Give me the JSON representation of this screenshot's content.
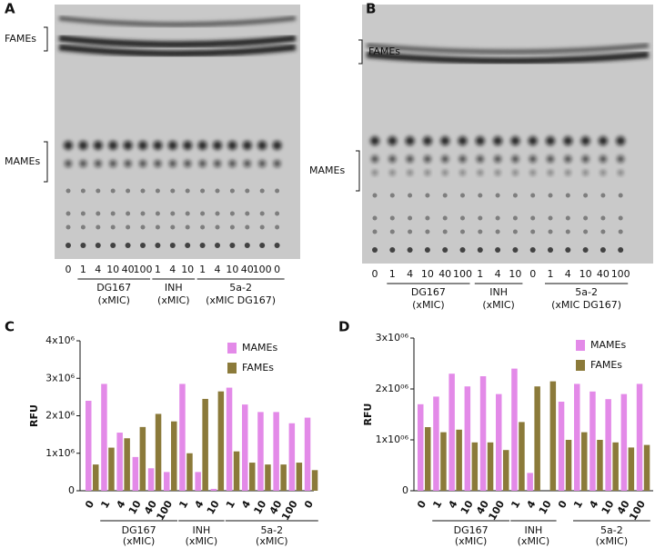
{
  "panels": [
    {
      "letter": "A",
      "band_labels": [
        "FAMEs",
        "MAMEs"
      ],
      "lanes": [
        "0",
        "1",
        "4",
        "10",
        "40",
        "100",
        "1",
        "4",
        "10",
        "1",
        "4",
        "10",
        "40",
        "100",
        "0"
      ],
      "groups": [
        {
          "name": "DG167",
          "unit": "(xMIC)"
        },
        {
          "name": "INH",
          "unit": "(xMIC)"
        },
        {
          "name": "5a-2",
          "unit": "(xMIC DG167)"
        }
      ]
    },
    {
      "letter": "B",
      "band_labels": [
        "FAMEs",
        "MAMEs"
      ],
      "lanes": [
        "0",
        "1",
        "4",
        "10",
        "40",
        "100",
        "1",
        "4",
        "10",
        "0",
        "1",
        "4",
        "10",
        "40",
        "100"
      ],
      "groups": [
        {
          "name": "DG167",
          "unit": "(xMIC)"
        },
        {
          "name": "INH",
          "unit": "(xMIC)"
        },
        {
          "name": "5a-2",
          "unit": "(xMIC DG167)"
        }
      ]
    }
  ],
  "chart_data": [
    {
      "type": "bar",
      "panel": "C",
      "y_label": "RFU",
      "categories": [
        "0",
        "1",
        "4",
        "10",
        "40",
        "100",
        "1",
        "4",
        "10",
        "1",
        "4",
        "10",
        "40",
        "100",
        "0"
      ],
      "series": [
        {
          "name": "MAMEs",
          "color": "#e38ae8",
          "values": [
            2400000,
            2850000,
            1550000,
            900000,
            600000,
            500000,
            2850000,
            500000,
            50000,
            2750000,
            2300000,
            2100000,
            2100000,
            1800000,
            1950000
          ]
        },
        {
          "name": "FAMEs",
          "color": "#8b7a3a",
          "values": [
            700000,
            1150000,
            1400000,
            1700000,
            2050000,
            1850000,
            1000000,
            2450000,
            2650000,
            1050000,
            750000,
            700000,
            700000,
            750000,
            550000
          ]
        }
      ],
      "ylim": [
        0,
        4000000
      ],
      "yticks": [
        0,
        {
          "value": 1000000,
          "label": "1x10⁶"
        },
        {
          "value": 2000000,
          "label": "2x10⁶"
        },
        {
          "value": 3000000,
          "label": "3x10⁶"
        },
        {
          "value": 4000000,
          "label": "4x10⁶"
        }
      ],
      "groups": [
        {
          "name": "DG167",
          "unit": "(xMIC)"
        },
        {
          "name": "INH",
          "unit": "(xMIC)"
        },
        {
          "name": "5a-2",
          "unit": "(xMIC)"
        }
      ]
    },
    {
      "type": "bar",
      "panel": "D",
      "y_label": "RFU",
      "categories": [
        "0",
        "1",
        "4",
        "10",
        "40",
        "100",
        "1",
        "4",
        "10",
        "0",
        "1",
        "4",
        "10",
        "40",
        "100"
      ],
      "series": [
        {
          "name": "MAMEs",
          "color": "#e38ae8",
          "values": [
            1700000,
            1850000,
            2300000,
            2050000,
            2250000,
            1900000,
            2400000,
            350000,
            0,
            1750000,
            2100000,
            1950000,
            1800000,
            1900000,
            2100000
          ]
        },
        {
          "name": "FAMEs",
          "color": "#8b7a3a",
          "values": [
            1250000,
            1150000,
            1200000,
            950000,
            950000,
            800000,
            1350000,
            2050000,
            2150000,
            1000000,
            1150000,
            1000000,
            950000,
            850000,
            900000
          ]
        }
      ],
      "ylim": [
        0,
        3000000
      ],
      "yticks": [
        0,
        {
          "value": 1000000,
          "label": "1x10⁰⁶"
        },
        {
          "value": 2000000,
          "label": "2x10⁰⁶"
        },
        {
          "value": 3000000,
          "label": "3x10⁰⁶"
        }
      ],
      "groups": [
        {
          "name": "DG167",
          "unit": "(xMIC)"
        },
        {
          "name": "INH",
          "unit": "(xMIC)"
        },
        {
          "name": "5a-2",
          "unit": "(xMIC)"
        }
      ]
    }
  ]
}
